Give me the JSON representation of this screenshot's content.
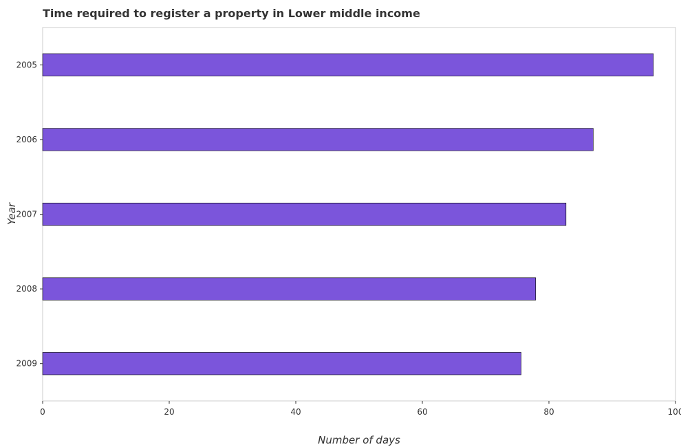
{
  "chart_data": {
    "type": "bar",
    "orientation": "horizontal",
    "title": "Time required to register a property in Lower middle income",
    "xlabel": "Number of days",
    "ylabel": "Year",
    "categories": [
      "2005",
      "2006",
      "2007",
      "2008",
      "2009"
    ],
    "values": [
      96.5,
      87.0,
      82.7,
      77.9,
      75.6
    ],
    "xlim": [
      0,
      100
    ],
    "xticks": [
      0,
      20,
      40,
      60,
      80,
      100
    ],
    "bar_color": "#7b55db",
    "bar_edge_color": "#000000",
    "grid": false
  }
}
